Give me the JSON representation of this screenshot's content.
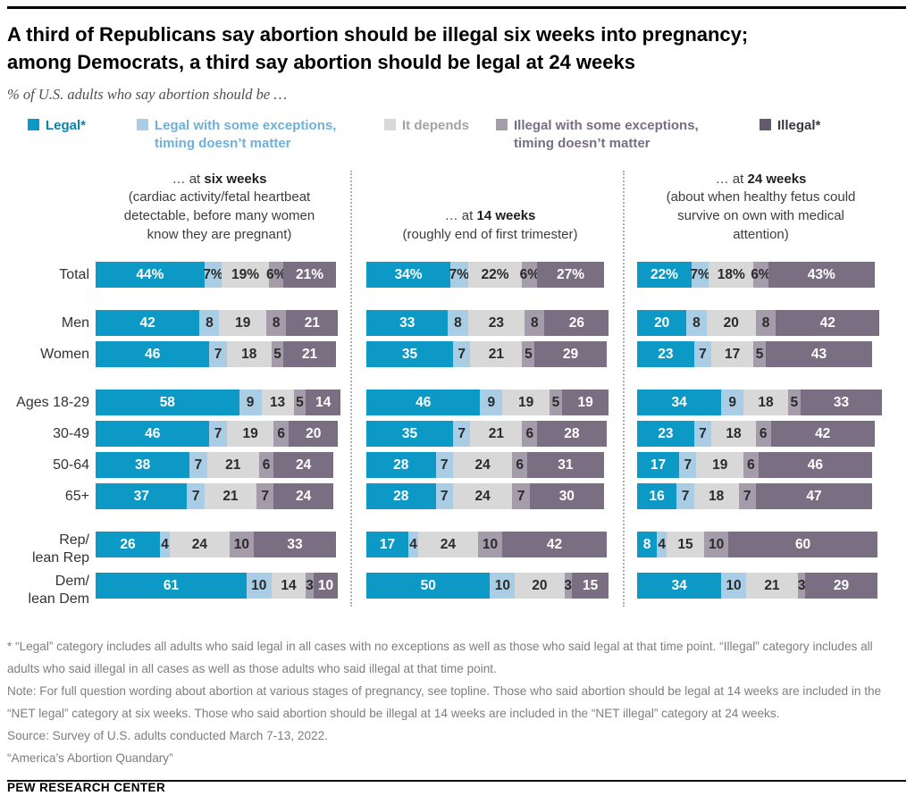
{
  "header": {
    "title": "A third of Republicans say abortion should be illegal six weeks into pregnancy;\namong Democrats, a third say abortion should be legal at 24 weeks",
    "subtitle": "% of U.S. adults who say abortion should be …"
  },
  "chart_data": {
    "type": "bar",
    "variant": "horizontal-stacked",
    "unit": "%",
    "xlim": [
      0,
      100
    ],
    "value_labels_shown": true,
    "series_labels": [
      "Legal*",
      "Legal with some exceptions, timing doesn’t matter",
      "It depends",
      "Illegal with some exceptions, timing doesn’t matter",
      "Illegal*"
    ],
    "series_colors": [
      "#0d99c5",
      "#a9cde5",
      "#d8d8d9",
      "#a49cab",
      "#7a6f82"
    ],
    "legend": [
      {
        "label": "Legal*",
        "swatch_color": "#0d99c5",
        "text_color": "#0a81a8"
      },
      {
        "label": "Legal with some exceptions, timing doesn’t matter",
        "swatch_color": "#a9cde5",
        "text_color": "#6fb0d9"
      },
      {
        "label": "It depends",
        "swatch_color": "#d8d8d9",
        "text_color": "#a3a3a3"
      },
      {
        "label": "Illegal with some exceptions, timing doesn’t matter",
        "swatch_color": "#a49cab",
        "text_color": "#776d85"
      },
      {
        "label": "Illegal*",
        "swatch_color": "#635a6d",
        "text_color": "#3b3741"
      }
    ],
    "panels": [
      {
        "heading_prefix": "… at ",
        "heading_bold": "six weeks",
        "description": "(cardiac activity/fetal heartbeat detectable, before many women know they are pregnant)"
      },
      {
        "heading_prefix": "… at ",
        "heading_bold": "14 weeks",
        "description": "(roughly end of first trimester)"
      },
      {
        "heading_prefix": "… at ",
        "heading_bold": "24 weeks",
        "description": "(about when healthy fetus could survive on own with medical attention)"
      }
    ],
    "row_groups": [
      [
        {
          "label_lines": [
            "Total"
          ],
          "value_suffix": "%",
          "values": [
            [
              44,
              7,
              19,
              6,
              21
            ],
            [
              34,
              7,
              22,
              6,
              27
            ],
            [
              22,
              7,
              18,
              6,
              43
            ]
          ]
        }
      ],
      [
        {
          "label_lines": [
            "Men"
          ],
          "values": [
            [
              42,
              8,
              19,
              8,
              21
            ],
            [
              33,
              8,
              23,
              8,
              26
            ],
            [
              20,
              8,
              20,
              8,
              42
            ]
          ]
        },
        {
          "label_lines": [
            "Women"
          ],
          "values": [
            [
              46,
              7,
              18,
              5,
              21
            ],
            [
              35,
              7,
              21,
              5,
              29
            ],
            [
              23,
              7,
              17,
              5,
              43
            ]
          ]
        }
      ],
      [
        {
          "label_lines": [
            "Ages 18-29"
          ],
          "values": [
            [
              58,
              9,
              13,
              5,
              14
            ],
            [
              46,
              9,
              19,
              5,
              19
            ],
            [
              34,
              9,
              18,
              5,
              33
            ]
          ]
        },
        {
          "label_lines": [
            "30-49"
          ],
          "values": [
            [
              46,
              7,
              19,
              6,
              20
            ],
            [
              35,
              7,
              21,
              6,
              28
            ],
            [
              23,
              7,
              18,
              6,
              42
            ]
          ]
        },
        {
          "label_lines": [
            "50-64"
          ],
          "values": [
            [
              38,
              7,
              21,
              6,
              24
            ],
            [
              28,
              7,
              24,
              6,
              31
            ],
            [
              17,
              7,
              19,
              6,
              46
            ]
          ]
        },
        {
          "label_lines": [
            "65+"
          ],
          "values": [
            [
              37,
              7,
              21,
              7,
              24
            ],
            [
              28,
              7,
              24,
              7,
              30
            ],
            [
              16,
              7,
              18,
              7,
              47
            ]
          ]
        }
      ],
      [
        {
          "label_lines": [
            "Rep/",
            "lean Rep"
          ],
          "values": [
            [
              26,
              4,
              24,
              10,
              33
            ],
            [
              17,
              4,
              24,
              10,
              42
            ],
            [
              8,
              4,
              15,
              10,
              60
            ]
          ]
        },
        {
          "label_lines": [
            "Dem/",
            "lean Dem"
          ],
          "values": [
            [
              61,
              10,
              14,
              3,
              10
            ],
            [
              50,
              10,
              20,
              3,
              15
            ],
            [
              34,
              10,
              21,
              3,
              29
            ]
          ]
        }
      ]
    ]
  },
  "footnotes": {
    "asterisk": "* “Legal” category includes all adults who said legal in all cases with no exceptions as well as those who said legal at that time point. “Illegal” category includes all adults who said illegal in all cases as well as those adults who said illegal at that time point.",
    "note": "Note: For full question wording about abortion at various stages of pregnancy, see topline. Those who said abortion should be legal at 14 weeks are included in the “NET legal” category at six weeks. Those who said abortion should be illegal at 14 weeks are included in the “NET illegal” category at 24 weeks.",
    "source": "Source: Survey of U.S. adults conducted March 7-13, 2022.",
    "quote": "“America’s Abortion Quandary”"
  },
  "footer": {
    "brand": "PEW RESEARCH CENTER"
  }
}
